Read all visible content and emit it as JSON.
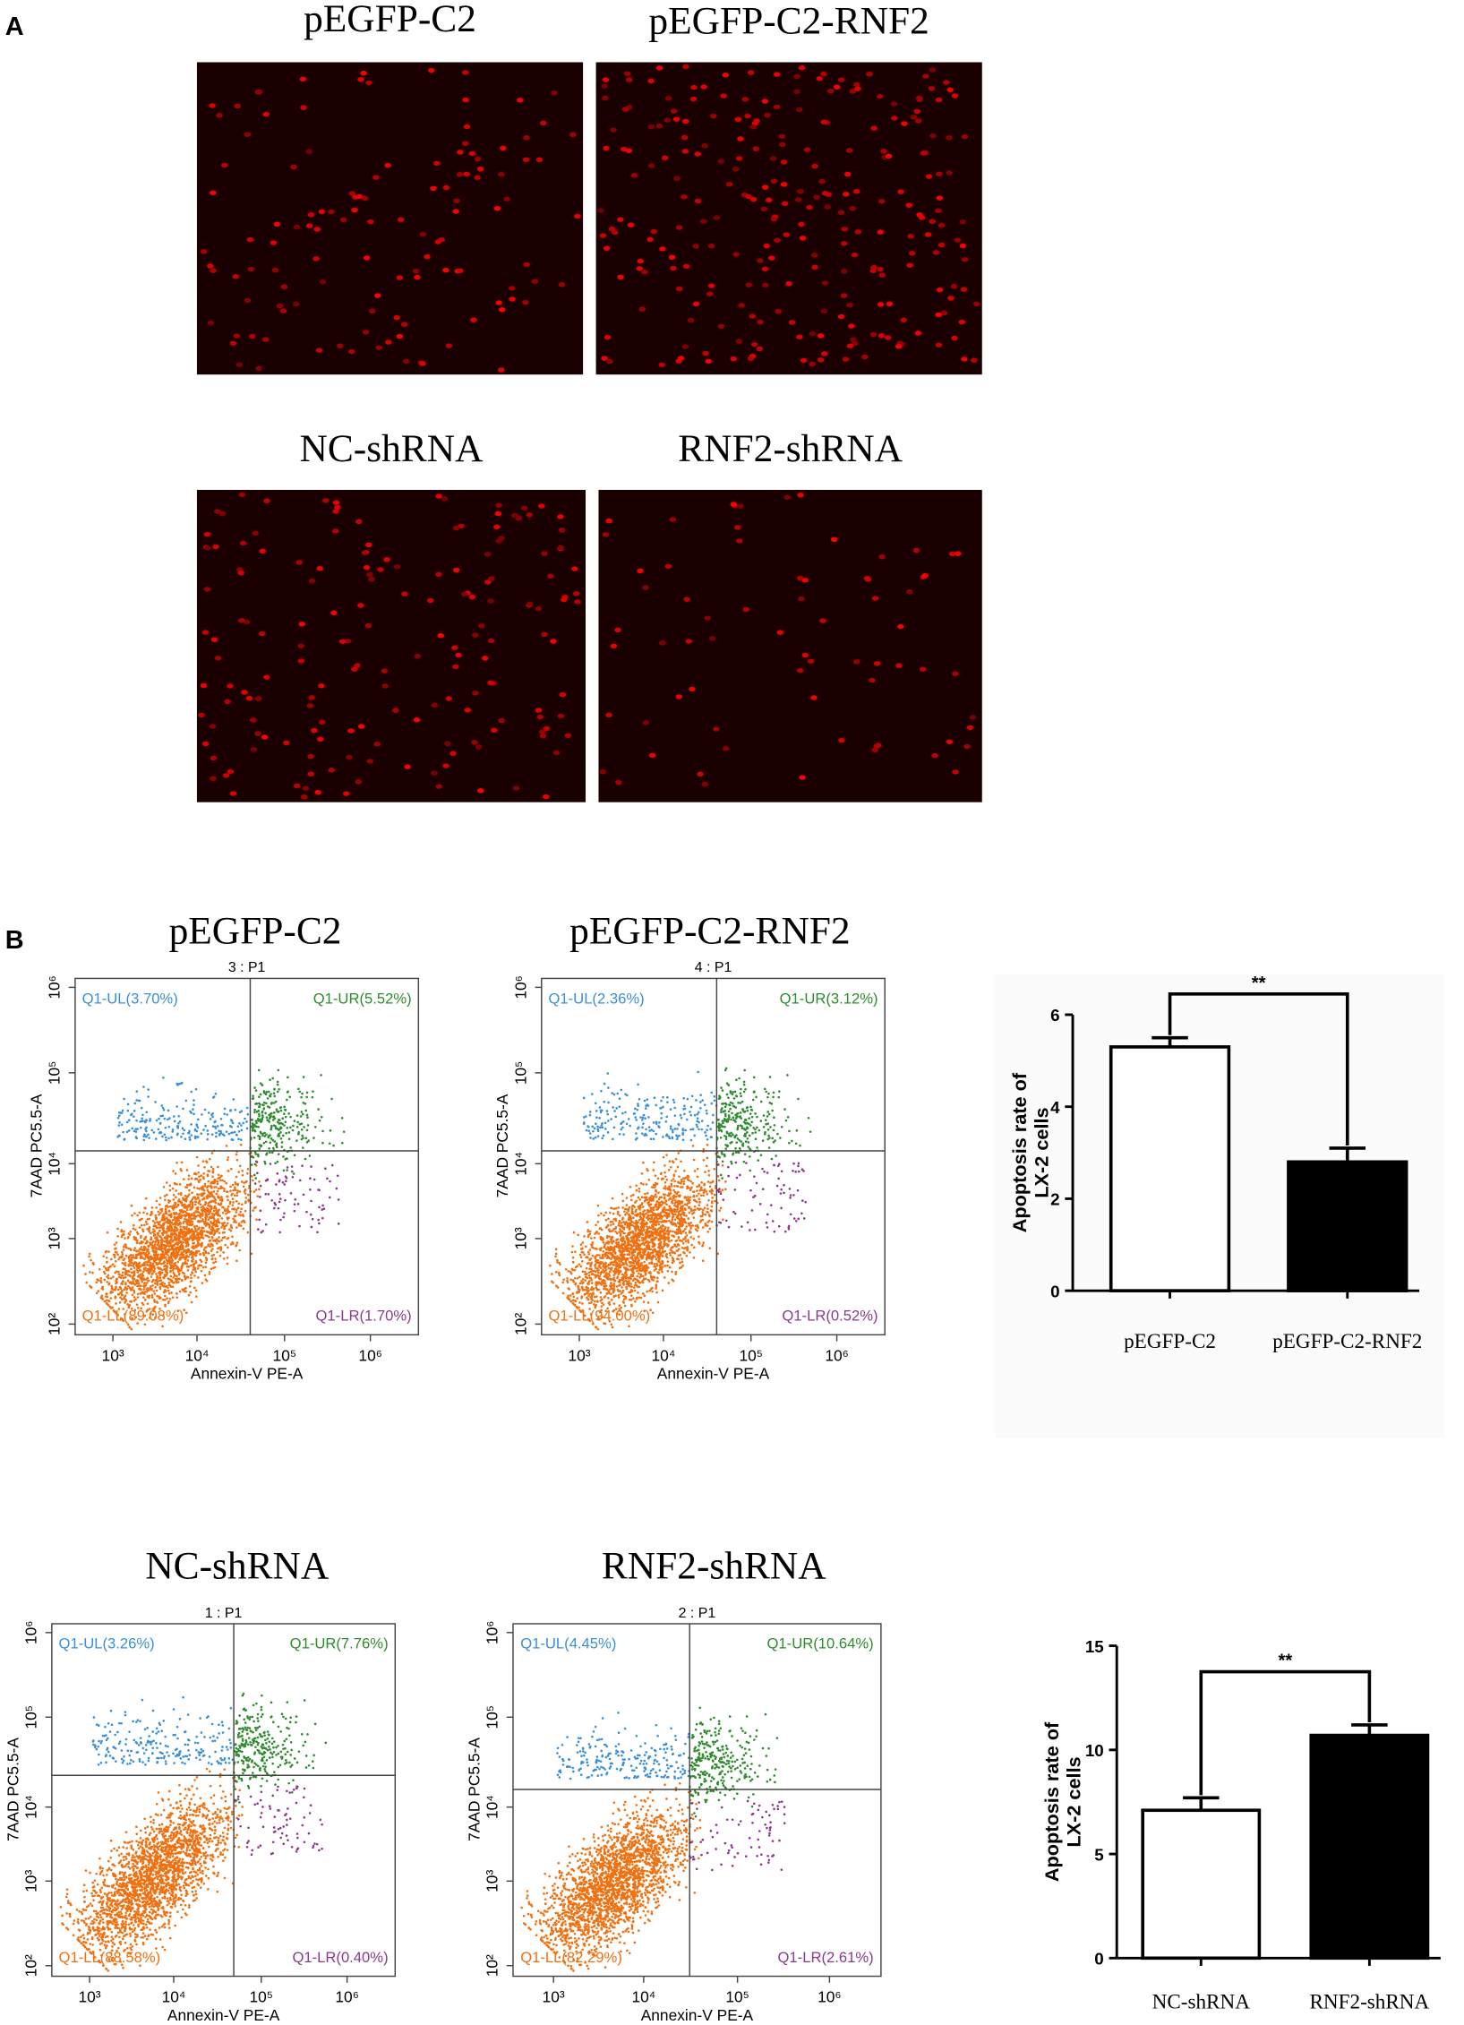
{
  "panel_a": {
    "label": "A",
    "image_titles": [
      "pEGFP-C2",
      "pEGFP-C2-RNF2",
      "NC-shRNA",
      "RNF2-shRNA"
    ]
  },
  "panel_b": {
    "label": "B",
    "x_axis_label": "Annexin-V PE-A",
    "y_axis_label": "7AAD PC5.5-A",
    "x_ticks": [
      "10³",
      "10⁴",
      "10⁵",
      "10⁶"
    ],
    "y_ticks": [
      "10²",
      "10³",
      "10⁴",
      "10⁵",
      "10⁶"
    ],
    "flow_plots": [
      {
        "title": "pEGFP-C2",
        "plot_id": "3 : P1",
        "ul": "Q1-UL(3.70%)",
        "ur": "Q1-UR(5.52%)",
        "ll": "Q1-LL(89.08%)",
        "lr": "Q1-LR(1.70%)"
      },
      {
        "title": "pEGFP-C2-RNF2",
        "plot_id": "4 : P1",
        "ul": "Q1-UL(2.36%)",
        "ur": "Q1-UR(3.12%)",
        "ll": "Q1-LL(94.00%)",
        "lr": "Q1-LR(0.52%)"
      },
      {
        "title": "NC-shRNA",
        "plot_id": "1 : P1",
        "ul": "Q1-UL(3.26%)",
        "ur": "Q1-UR(7.76%)",
        "ll": "Q1-LL(88.58%)",
        "lr": "Q1-LR(0.40%)"
      },
      {
        "title": "RNF2-shRNA",
        "plot_id": "2 : P1",
        "ul": "Q1-UL(4.45%)",
        "ur": "Q1-UR(10.64%)",
        "ll": "Q1-LL(82.29%)",
        "lr": "Q1-LR(2.61%)"
      }
    ]
  },
  "chart_data": [
    {
      "type": "bar",
      "y_label": [
        "Apoptosis rate of",
        "LX-2 cells"
      ],
      "categories": [
        "pEGFP-C2",
        "pEGFP-C2-RNF2"
      ],
      "values": [
        5.3,
        2.8
      ],
      "errors": [
        0.2,
        0.3
      ],
      "colors": [
        "#ffffff",
        "#000000"
      ],
      "ylim": [
        0,
        6
      ],
      "yticks": [
        0,
        2,
        4,
        6
      ],
      "significance": "**"
    },
    {
      "type": "bar",
      "y_label": [
        "Apoptosis rate of",
        "LX-2 cells"
      ],
      "categories": [
        "NC-shRNA",
        "RNF2-shRNA"
      ],
      "values": [
        7.1,
        10.7
      ],
      "errors": [
        0.6,
        0.5
      ],
      "colors": [
        "#ffffff",
        "#000000"
      ],
      "ylim": [
        0,
        15
      ],
      "yticks": [
        0,
        5,
        10,
        15
      ],
      "significance": "**"
    }
  ]
}
